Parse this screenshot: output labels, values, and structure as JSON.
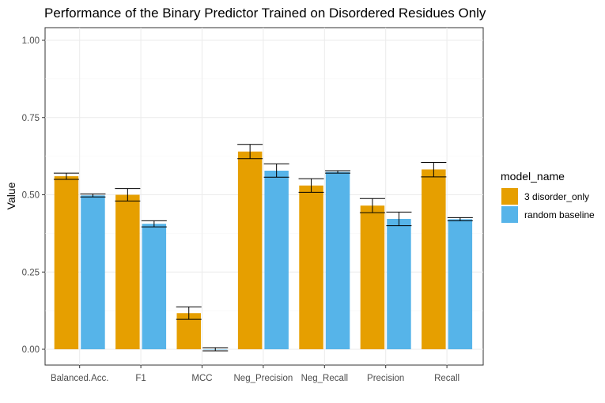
{
  "chart_data": {
    "type": "bar",
    "title": "Performance of the Binary Predictor Trained on Disordered Residues Only",
    "xlabel": "",
    "ylabel": "Value",
    "ylim": [
      -0.03,
      1.05
    ],
    "yticks": [
      "0.00",
      "0.25",
      "0.50",
      "0.75",
      "1.00"
    ],
    "grid": true,
    "categories": [
      "Balanced.Acc.",
      "F1",
      "MCC",
      "Neg_Precision",
      "Neg_Recall",
      "Precision",
      "Recall"
    ],
    "legend": {
      "title": "model_name",
      "position": "right"
    },
    "series": [
      {
        "name": "3 disorder_only",
        "color": "#E69F00",
        "values": [
          0.56,
          0.5,
          0.117,
          0.64,
          0.53,
          0.465,
          0.582
        ],
        "err_low": [
          0.55,
          0.48,
          0.097,
          0.617,
          0.508,
          0.442,
          0.558
        ],
        "err_high": [
          0.57,
          0.52,
          0.137,
          0.663,
          0.552,
          0.488,
          0.605
        ]
      },
      {
        "name": "random baseline",
        "color": "#56B4E9",
        "values": [
          0.498,
          0.406,
          0.0,
          0.578,
          0.574,
          0.422,
          0.421
        ],
        "err_low": [
          0.493,
          0.396,
          -0.005,
          0.557,
          0.57,
          0.4,
          0.416
        ],
        "err_high": [
          0.503,
          0.416,
          0.005,
          0.6,
          0.578,
          0.444,
          0.426
        ]
      }
    ]
  }
}
